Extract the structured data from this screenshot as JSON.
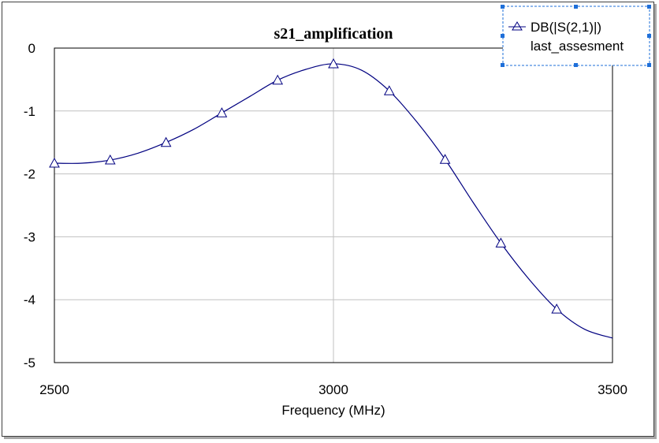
{
  "chart_data": {
    "type": "line",
    "title": "s21_amplification",
    "xlabel": "Frequency (MHz)",
    "ylabel": "",
    "xlim": [
      2500,
      3500
    ],
    "ylim": [
      -5,
      0
    ],
    "xticks": [
      2500,
      3000,
      3500
    ],
    "yticks": [
      0,
      -1,
      -2,
      -3,
      -4,
      -5
    ],
    "grid": true,
    "legend_position": "top-right",
    "legend": {
      "series_label": "DB(|S(2,1)|)",
      "source_label": "last_assesment"
    },
    "series": [
      {
        "name": "DB(|S(2,1)|)",
        "color": "#000080",
        "marker": "triangle",
        "x": [
          2500,
          2550,
          2600,
          2650,
          2700,
          2750,
          2800,
          2850,
          2900,
          2950,
          3000,
          3050,
          3100,
          3150,
          3200,
          3250,
          3300,
          3350,
          3400,
          3450,
          3500
        ],
        "y": [
          -1.83,
          -1.83,
          -1.78,
          -1.67,
          -1.5,
          -1.29,
          -1.03,
          -0.77,
          -0.51,
          -0.34,
          -0.25,
          -0.35,
          -0.68,
          -1.18,
          -1.77,
          -2.45,
          -3.1,
          -3.67,
          -4.15,
          -4.47,
          -4.61
        ]
      }
    ],
    "markers": {
      "x": [
        2500,
        2600,
        2700,
        2800,
        2900,
        3000,
        3100,
        3200,
        3300,
        3400
      ],
      "y": [
        -1.83,
        -1.78,
        -1.5,
        -1.03,
        -0.51,
        -0.25,
        -0.68,
        -1.77,
        -3.1,
        -4.15
      ]
    }
  }
}
